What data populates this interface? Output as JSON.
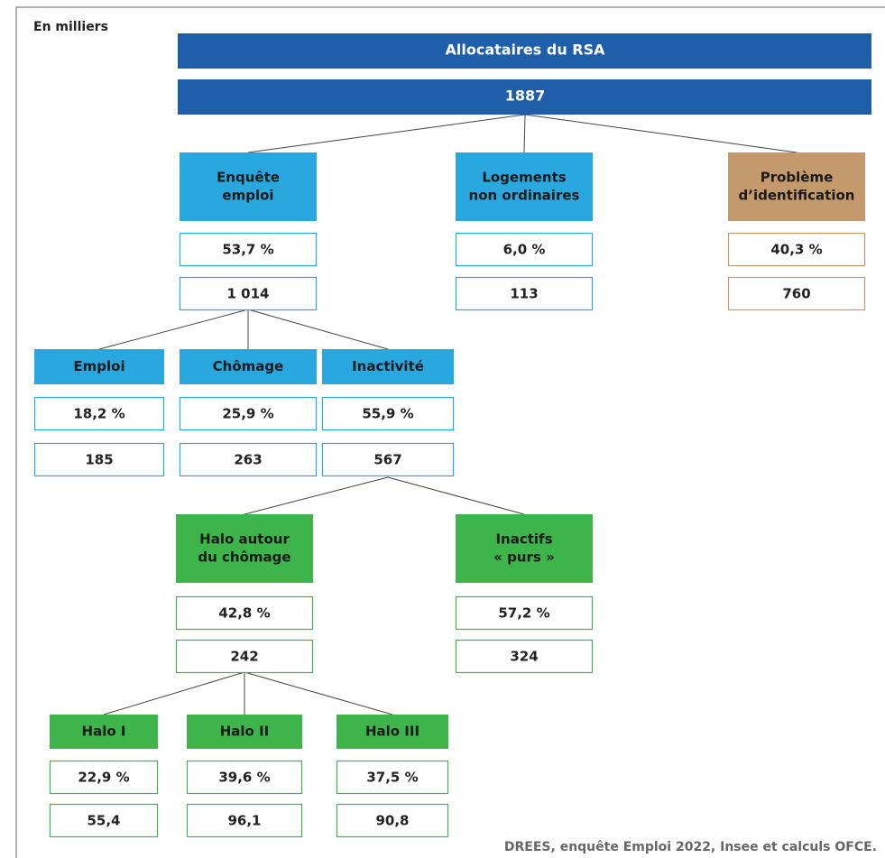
{
  "header": {
    "unit": "En milliers",
    "title": "Allocataires du RSA",
    "total": "1887"
  },
  "nodes": [
    {
      "label": [
        "Enquête",
        "emploi"
      ],
      "percent": "53,7 %",
      "count": "1 014"
    },
    {
      "label": [
        "Logements",
        "non ordinaires"
      ],
      "percent": "6,0 %",
      "count": "113"
    },
    {
      "label": [
        "Problème",
        "d’identification"
      ],
      "percent": "40,3 %",
      "count": "760"
    },
    {
      "label": [
        "Emploi"
      ],
      "percent": "18,2 %",
      "count": "185"
    },
    {
      "label": [
        "Chômage"
      ],
      "percent": "25,9 %",
      "count": "263"
    },
    {
      "label": [
        "Inactivité"
      ],
      "percent": "55,9 %",
      "count": "567"
    },
    {
      "label": [
        "Halo autour",
        "du chômage"
      ],
      "percent": "42,8 %",
      "count": "242"
    },
    {
      "label": [
        "Inactifs",
        "« purs »"
      ],
      "percent": "57,2 %",
      "count": "324"
    },
    {
      "label": [
        "Halo I"
      ],
      "percent": "22,9 %",
      "count": "55,4"
    },
    {
      "label": [
        "Halo II"
      ],
      "percent": "39,6 %",
      "count": "96,1"
    },
    {
      "label": [
        "Halo III"
      ],
      "percent": "37,5 %",
      "count": "90,8"
    }
  ],
  "source": "DREES, enquête Emploi 2022, Insee et calculs OFCE."
}
